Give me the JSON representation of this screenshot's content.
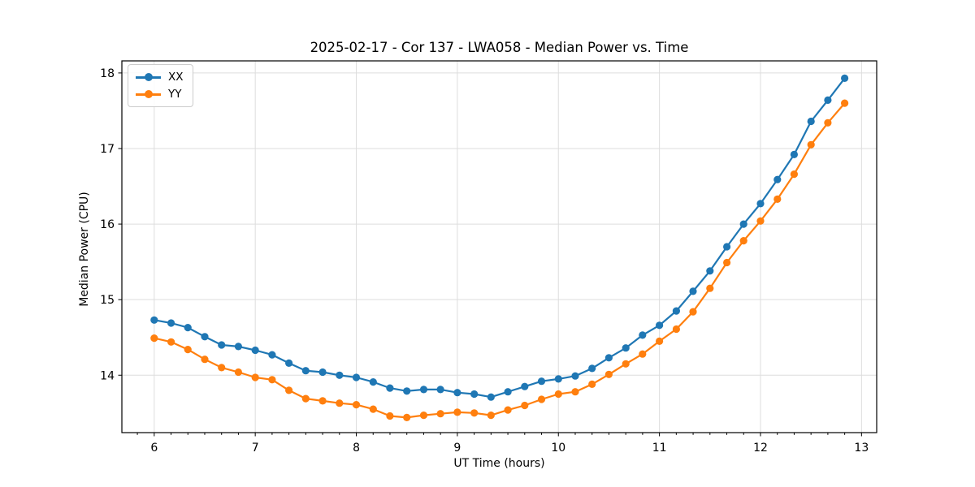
{
  "chart_data": {
    "type": "line",
    "title": "2025-02-17 - Cor 137 - LWA058 - Median Power vs. Time",
    "xlabel": "UT Time (hours)",
    "ylabel": "Median Power (CPU)",
    "xlim": [
      5.68,
      13.15
    ],
    "ylim": [
      13.24,
      18.16
    ],
    "x_ticks": [
      6,
      7,
      8,
      9,
      10,
      11,
      12,
      13
    ],
    "y_ticks": [
      14,
      15,
      16,
      17,
      18
    ],
    "x_minor_tick_step": 0.166667,
    "grid": true,
    "grid_color": "#dddddd",
    "legend_position": "upper-left",
    "x": [
      6.0,
      6.167,
      6.333,
      6.5,
      6.667,
      6.833,
      7.0,
      7.167,
      7.333,
      7.5,
      7.667,
      7.833,
      8.0,
      8.167,
      8.333,
      8.5,
      8.667,
      8.833,
      9.0,
      9.167,
      9.333,
      9.5,
      9.667,
      9.833,
      10.0,
      10.167,
      10.333,
      10.5,
      10.667,
      10.833,
      11.0,
      11.167,
      11.333,
      11.5,
      11.667,
      11.833,
      12.0,
      12.167,
      12.333,
      12.5,
      12.667,
      12.833
    ],
    "series": [
      {
        "name": "XX",
        "color": "#1f77b4",
        "values": [
          14.73,
          14.69,
          14.63,
          14.51,
          14.4,
          14.38,
          14.33,
          14.27,
          14.16,
          14.06,
          14.04,
          14.0,
          13.97,
          13.91,
          13.83,
          13.79,
          13.81,
          13.81,
          13.77,
          13.75,
          13.71,
          13.78,
          13.85,
          13.92,
          13.95,
          13.99,
          14.09,
          14.23,
          14.36,
          14.53,
          14.66,
          14.85,
          15.11,
          15.38,
          15.7,
          16.0,
          16.27,
          16.59,
          16.92,
          17.36,
          17.64,
          17.93
        ]
      },
      {
        "name": "YY",
        "color": "#ff7f0e",
        "values": [
          14.49,
          14.44,
          14.34,
          14.21,
          14.1,
          14.04,
          13.97,
          13.94,
          13.8,
          13.69,
          13.66,
          13.63,
          13.61,
          13.55,
          13.46,
          13.44,
          13.47,
          13.49,
          13.51,
          13.5,
          13.47,
          13.54,
          13.6,
          13.68,
          13.75,
          13.78,
          13.88,
          14.01,
          14.15,
          14.28,
          14.45,
          14.61,
          14.84,
          15.15,
          15.49,
          15.78,
          16.04,
          16.33,
          16.66,
          17.05,
          17.34,
          17.6
        ]
      }
    ]
  }
}
